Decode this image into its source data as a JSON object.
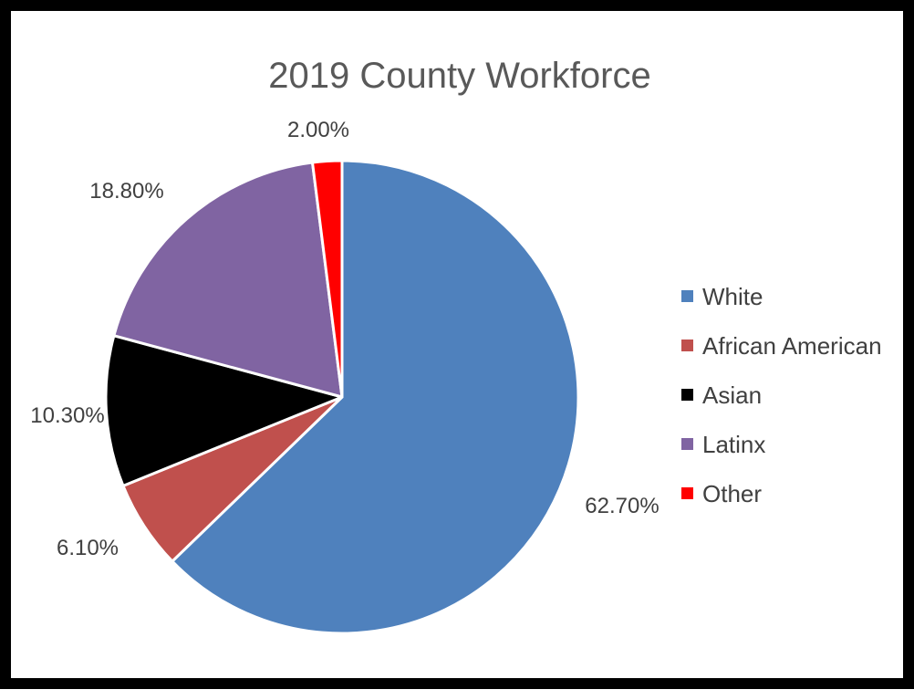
{
  "chart_data": {
    "type": "pie",
    "title": "2019 County Workforce",
    "categories": [
      "White",
      "African American",
      "Asian",
      "Latinx",
      "Other"
    ],
    "values": [
      62.7,
      6.1,
      10.3,
      18.8,
      2.0
    ],
    "data_labels": [
      "62.70%",
      "6.10%",
      "10.30%",
      "18.80%",
      "2.00%"
    ],
    "colors": [
      "#4F81BD",
      "#C0504D",
      "#000000",
      "#8064A2",
      "#FF0000"
    ],
    "legend_position": "right",
    "start_angle": "12 o'clock",
    "direction": "clockwise"
  }
}
